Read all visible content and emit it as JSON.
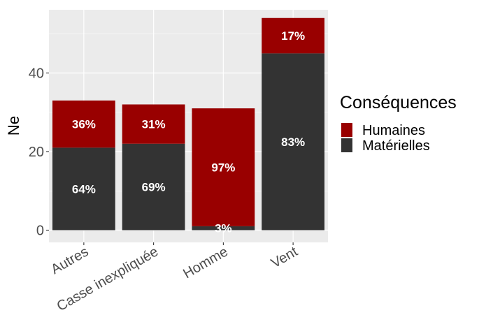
{
  "chart_data": {
    "type": "bar",
    "stacked": true,
    "title": "",
    "xlabel": "",
    "ylabel": "Ne",
    "ylim": [
      0,
      57
    ],
    "yticks": [
      0,
      20,
      40
    ],
    "grid": true,
    "categories": [
      "Autres",
      "Casse inexpliquée",
      "Homme",
      "Vent"
    ],
    "series": [
      {
        "name": "Matérielles",
        "color": "#333333",
        "values": [
          21,
          22,
          1,
          45
        ],
        "labels": [
          "64%",
          "69%",
          "3%",
          "83%"
        ]
      },
      {
        "name": "Humaines",
        "color": "#990000",
        "values": [
          12,
          10,
          30,
          9
        ],
        "labels": [
          "36%",
          "31%",
          "97%",
          "17%"
        ]
      }
    ],
    "legend": {
      "title": "Conséquences",
      "position": "right",
      "entries": [
        "Humaines",
        "Matérielles"
      ]
    }
  }
}
